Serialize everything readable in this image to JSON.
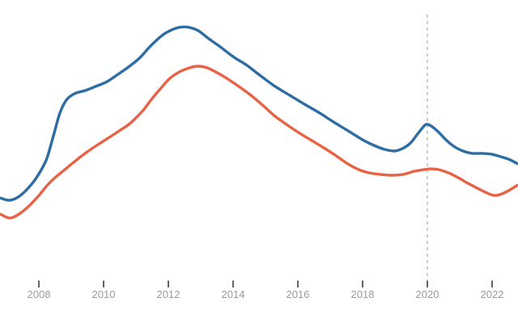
{
  "chart_data": {
    "type": "line",
    "title": "",
    "xlabel": "",
    "ylabel": "",
    "grid": false,
    "legend": false,
    "x_axis": {
      "range": [
        2006.8,
        2022.8
      ],
      "tick_years": [
        2008,
        2010,
        2012,
        2014,
        2016,
        2018,
        2020,
        2022
      ],
      "tick_labels": [
        "2008",
        "2010",
        "2012",
        "2014",
        "2016",
        "2018",
        "2020",
        "2022"
      ]
    },
    "y_axis": {
      "range": [
        0,
        100
      ],
      "labels_visible": false
    },
    "reference_line": {
      "x": 2020,
      "style": "dashed",
      "color": "#b8b8b8"
    },
    "series": [
      {
        "name": "series-1-blue",
        "color": "#2e6da4",
        "points": [
          [
            2006.8,
            31.2
          ],
          [
            2007.1,
            30.3
          ],
          [
            2007.43,
            32.1
          ],
          [
            2007.8,
            36.7
          ],
          [
            2008.05,
            41.2
          ],
          [
            2008.25,
            46.1
          ],
          [
            2008.45,
            54.5
          ],
          [
            2008.65,
            63.0
          ],
          [
            2008.85,
            67.9
          ],
          [
            2009.1,
            70.3
          ],
          [
            2009.43,
            71.5
          ],
          [
            2009.75,
            73.0
          ],
          [
            2010.1,
            74.8
          ],
          [
            2010.45,
            77.6
          ],
          [
            2010.8,
            80.6
          ],
          [
            2011.13,
            83.9
          ],
          [
            2011.45,
            88.2
          ],
          [
            2011.8,
            92.1
          ],
          [
            2012.1,
            94.2
          ],
          [
            2012.35,
            95.2
          ],
          [
            2012.63,
            95.2
          ],
          [
            2012.93,
            93.9
          ],
          [
            2013.25,
            90.9
          ],
          [
            2013.6,
            87.9
          ],
          [
            2014.0,
            84.2
          ],
          [
            2014.43,
            80.9
          ],
          [
            2014.85,
            77.0
          ],
          [
            2015.3,
            73.0
          ],
          [
            2015.75,
            69.7
          ],
          [
            2016.2,
            66.4
          ],
          [
            2016.68,
            63.0
          ],
          [
            2017.1,
            59.7
          ],
          [
            2017.55,
            56.4
          ],
          [
            2018.0,
            53.0
          ],
          [
            2018.35,
            50.9
          ],
          [
            2018.68,
            49.4
          ],
          [
            2018.98,
            48.8
          ],
          [
            2019.23,
            49.7
          ],
          [
            2019.48,
            51.8
          ],
          [
            2019.7,
            55.2
          ],
          [
            2019.9,
            58.2
          ],
          [
            2020.0,
            58.8
          ],
          [
            2020.15,
            57.9
          ],
          [
            2020.35,
            55.8
          ],
          [
            2020.6,
            52.7
          ],
          [
            2020.85,
            50.3
          ],
          [
            2021.1,
            48.8
          ],
          [
            2021.38,
            47.9
          ],
          [
            2021.68,
            47.9
          ],
          [
            2021.98,
            47.6
          ],
          [
            2022.25,
            46.7
          ],
          [
            2022.55,
            45.5
          ],
          [
            2022.8,
            43.9
          ]
        ]
      },
      {
        "name": "series-2-orange",
        "color": "#e86246",
        "points": [
          [
            2006.8,
            25.2
          ],
          [
            2007.1,
            23.6
          ],
          [
            2007.4,
            25.2
          ],
          [
            2007.7,
            28.2
          ],
          [
            2008.0,
            32.1
          ],
          [
            2008.25,
            35.8
          ],
          [
            2008.5,
            38.8
          ],
          [
            2008.8,
            41.8
          ],
          [
            2009.1,
            44.8
          ],
          [
            2009.43,
            47.9
          ],
          [
            2009.75,
            50.6
          ],
          [
            2010.1,
            53.3
          ],
          [
            2010.45,
            56.1
          ],
          [
            2010.75,
            58.5
          ],
          [
            2011.0,
            61.2
          ],
          [
            2011.25,
            64.5
          ],
          [
            2011.5,
            68.5
          ],
          [
            2011.75,
            72.1
          ],
          [
            2012.05,
            76.1
          ],
          [
            2012.35,
            78.5
          ],
          [
            2012.65,
            80.0
          ],
          [
            2012.93,
            80.6
          ],
          [
            2013.2,
            80.0
          ],
          [
            2013.5,
            78.2
          ],
          [
            2013.8,
            76.1
          ],
          [
            2014.18,
            73.0
          ],
          [
            2014.55,
            69.7
          ],
          [
            2014.93,
            65.8
          ],
          [
            2015.3,
            61.8
          ],
          [
            2015.68,
            58.5
          ],
          [
            2016.05,
            55.5
          ],
          [
            2016.43,
            52.7
          ],
          [
            2016.8,
            50.0
          ],
          [
            2017.18,
            47.0
          ],
          [
            2017.55,
            43.9
          ],
          [
            2017.88,
            41.8
          ],
          [
            2018.2,
            40.6
          ],
          [
            2018.55,
            40.0
          ],
          [
            2018.9,
            39.7
          ],
          [
            2019.25,
            40.0
          ],
          [
            2019.6,
            41.2
          ],
          [
            2019.9,
            41.8
          ],
          [
            2020.1,
            42.1
          ],
          [
            2020.35,
            41.8
          ],
          [
            2020.65,
            40.6
          ],
          [
            2020.95,
            38.8
          ],
          [
            2021.25,
            36.7
          ],
          [
            2021.55,
            34.8
          ],
          [
            2021.85,
            33.0
          ],
          [
            2022.08,
            32.1
          ],
          [
            2022.3,
            32.7
          ],
          [
            2022.55,
            34.2
          ],
          [
            2022.8,
            36.1
          ]
        ]
      }
    ],
    "colors": {
      "background": "#ffffff",
      "tick": "#3a3a3a",
      "tick_label": "#9a9a9a"
    }
  }
}
